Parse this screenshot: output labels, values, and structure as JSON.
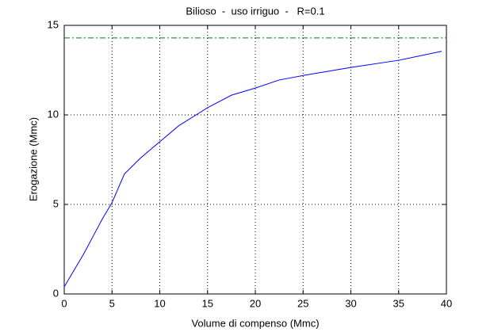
{
  "chart_data": {
    "type": "line",
    "title": "Bilioso  -  uso irriguo  -   R=0.1",
    "xlabel": "Volume di compenso (Mmc)",
    "ylabel": "Erogazione (Mmc)",
    "series": [
      {
        "color": "#0000ff",
        "style": "solid",
        "x": [
          0,
          1,
          2,
          3,
          4,
          5,
          6.3,
          8,
          10,
          12,
          15,
          17.5,
          20,
          22.5,
          25,
          30,
          35,
          39.5
        ],
        "values": [
          0.4,
          1.3,
          2.2,
          3.2,
          4.2,
          5.1,
          6.7,
          7.6,
          8.5,
          9.4,
          10.4,
          11.1,
          11.5,
          11.95,
          12.2,
          12.65,
          13.05,
          13.55
        ]
      },
      {
        "color": "#008000",
        "style": "dash-dot",
        "x": [
          0,
          40
        ],
        "values": [
          14.3,
          14.3
        ]
      }
    ],
    "xlim": [
      0,
      40
    ],
    "xticks": [
      0,
      5,
      10,
      15,
      20,
      25,
      30,
      35,
      40
    ],
    "ylim": [
      0,
      15
    ],
    "yticks": [
      0,
      5,
      10,
      15
    ],
    "grid": true
  }
}
